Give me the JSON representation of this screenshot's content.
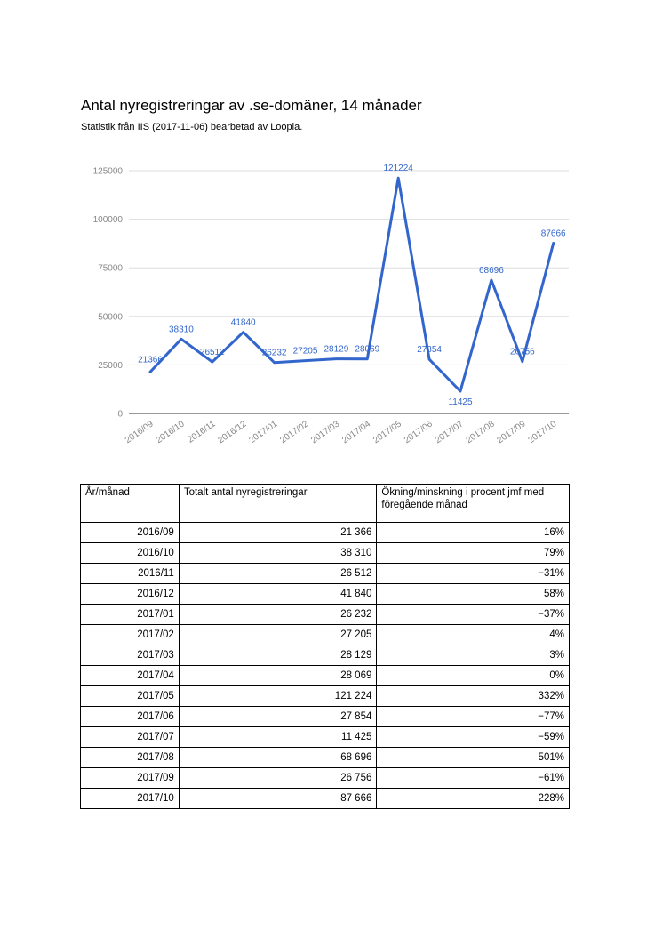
{
  "document": {
    "title": "Antal nyregistreringar av .se-domäner, 14 månader",
    "subtitle": "Statistik från IIS (2017-11-06) bearbetad av Loopia."
  },
  "chart_data": {
    "type": "line",
    "title": "",
    "xlabel": "",
    "ylabel": "",
    "categories": [
      "2016/09",
      "2016/10",
      "2016/11",
      "2016/12",
      "2017/01",
      "2017/02",
      "2017/03",
      "2017/04",
      "2017/05",
      "2017/06",
      "2017/07",
      "2017/08",
      "2017/09",
      "2017/10"
    ],
    "series": [
      {
        "values": [
          21366,
          38310,
          26512,
          41840,
          26232,
          27205,
          28129,
          28069,
          121224,
          27854,
          11425,
          68696,
          26756,
          87666
        ]
      }
    ],
    "data_labels": [
      "21366",
      "38310",
      "26512",
      "41840",
      "26232",
      "27205",
      "28129",
      "28069",
      "121224",
      "27854",
      "11425",
      "68696",
      "26756",
      "87666"
    ],
    "y_ticks": [
      0,
      25000,
      50000,
      75000,
      100000,
      125000
    ],
    "y_tick_labels": [
      "0",
      "25000",
      "50000",
      "75000",
      "100000",
      "125000"
    ],
    "ylim": [
      0,
      125000
    ],
    "grid": true,
    "line_color": "#3366cc",
    "label_color": "#3366cc",
    "grid_color": "#dddddd",
    "tick_label_color": "#888888"
  },
  "table": {
    "headers": [
      "År/månad",
      "Totalt antal nyregistreringar",
      "Ökning/minskning i procent jmf med föregående månad"
    ],
    "rows": [
      [
        "2016/09",
        "21 366",
        "16%"
      ],
      [
        "2016/10",
        "38 310",
        "79%"
      ],
      [
        "2016/11",
        "26 512",
        "−31%"
      ],
      [
        "2016/12",
        "41 840",
        "58%"
      ],
      [
        "2017/01",
        "26 232",
        "−37%"
      ],
      [
        "2017/02",
        "27 205",
        "4%"
      ],
      [
        "2017/03",
        "28 129",
        "3%"
      ],
      [
        "2017/04",
        "28 069",
        "0%"
      ],
      [
        "2017/05",
        "121 224",
        "332%"
      ],
      [
        "2017/06",
        "27 854",
        "−77%"
      ],
      [
        "2017/07",
        "11 425",
        "−59%"
      ],
      [
        "2017/08",
        "68 696",
        "501%"
      ],
      [
        "2017/09",
        "26 756",
        "−61%"
      ],
      [
        "2017/10",
        "87 666",
        "228%"
      ]
    ]
  }
}
